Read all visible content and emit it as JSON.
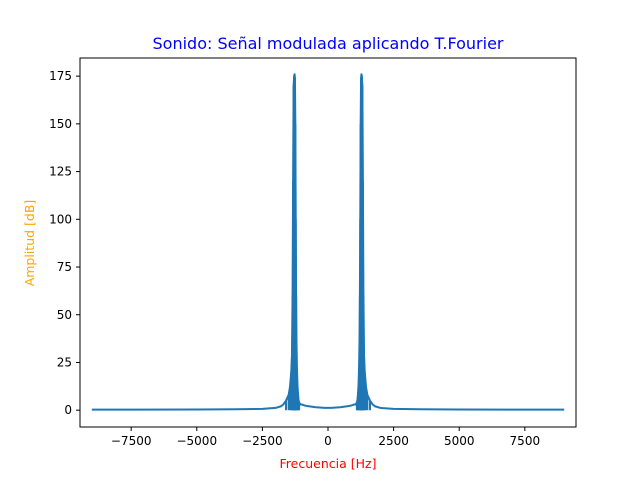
{
  "chart_data": {
    "type": "line",
    "title": "Sonido: Señal modulada aplicando T.Fourier",
    "xlabel": "Frecuencia [Hz]",
    "ylabel": "Amplitud [dB]",
    "xlim": [
      -9450,
      9450
    ],
    "ylim": [
      -8.8,
      184.5
    ],
    "xticks": [
      -7500,
      -5000,
      -2500,
      0,
      2500,
      5000,
      7500
    ],
    "xtick_labels": [
      "−7500",
      "−5000",
      "−2500",
      "0",
      "2500",
      "5000",
      "7500"
    ],
    "yticks": [
      0,
      25,
      50,
      75,
      100,
      125,
      150,
      175
    ],
    "ytick_labels": [
      "0",
      "25",
      "50",
      "75",
      "100",
      "125",
      "150",
      "175"
    ],
    "grid": false,
    "series": [
      {
        "color": "#1f77b4",
        "x": [
          -9000,
          -7500,
          -5000,
          -3500,
          -2500,
          -2000,
          -1800,
          -1700,
          -1600,
          -1500,
          -1450,
          -1400,
          -1375,
          -1350,
          -1330,
          -1310,
          -1290,
          -1275,
          -1260,
          -1245,
          -1230,
          -1215,
          -1200,
          -1180,
          -1160,
          -1140,
          -1120,
          -1100,
          -1050,
          -1000,
          -900,
          -800,
          -700,
          -600,
          -500,
          -400,
          -300,
          -200,
          -100,
          0,
          100,
          200,
          300,
          400,
          500,
          600,
          700,
          800,
          900,
          1000,
          1050,
          1100,
          1120,
          1140,
          1160,
          1180,
          1200,
          1215,
          1230,
          1245,
          1260,
          1275,
          1290,
          1310,
          1330,
          1350,
          1375,
          1400,
          1450,
          1500,
          1600,
          1700,
          1800,
          2000,
          2500,
          3500,
          5000,
          7500,
          9000
        ],
        "y": [
          0.3,
          0.3,
          0.4,
          0.5,
          0.7,
          1.2,
          2,
          3,
          5,
          8,
          12,
          20,
          28,
          60,
          120,
          170,
          175,
          176,
          174,
          150,
          100,
          60,
          35,
          20,
          12,
          8,
          5,
          4,
          3,
          3,
          2.5,
          2.2,
          2,
          1.8,
          1.6,
          1.5,
          1.4,
          1.3,
          1.2,
          1.2,
          1.2,
          1.3,
          1.4,
          1.5,
          1.6,
          1.8,
          2,
          2.2,
          2.5,
          3,
          3,
          4,
          5,
          8,
          12,
          20,
          35,
          60,
          100,
          150,
          174,
          176,
          175,
          170,
          120,
          60,
          28,
          20,
          12,
          8,
          5,
          3,
          2,
          1.2,
          0.7,
          0.5,
          0.4,
          0.3,
          0.3
        ]
      }
    ]
  },
  "colors": {
    "title": "#0000ff",
    "xlabel": "#ff0000",
    "ylabel": "#ffa500",
    "line": "#1f77b4",
    "axes": "#000000"
  }
}
